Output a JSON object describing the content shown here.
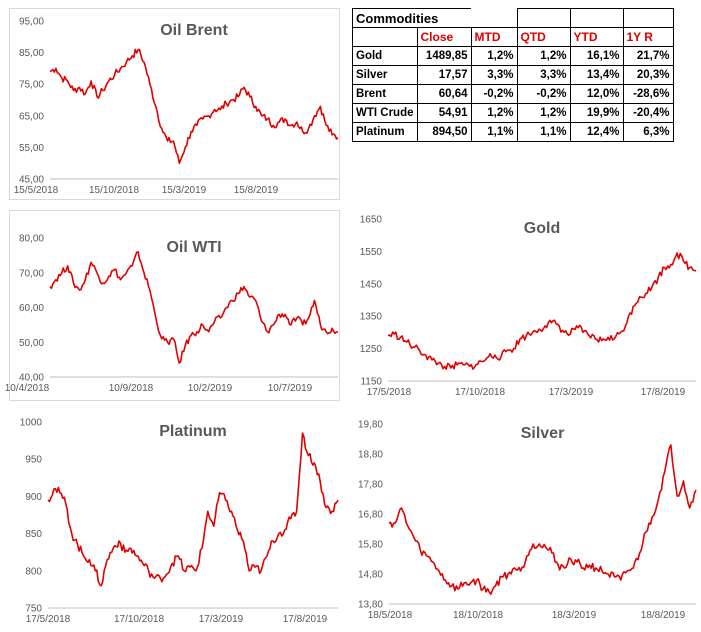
{
  "line_color": "#e00000",
  "table": {
    "title": "Commodities",
    "headers": [
      "Close",
      "MTD",
      "QTD",
      "YTD",
      "1Y R"
    ],
    "rows": [
      {
        "name": "Gold",
        "values": [
          "1489,85",
          "1,2%",
          "1,2%",
          "16,1%",
          "21,7%"
        ]
      },
      {
        "name": "Silver",
        "values": [
          "17,57",
          "3,3%",
          "3,3%",
          "13,4%",
          "20,3%"
        ]
      },
      {
        "name": "Brent",
        "values": [
          "60,64",
          "-0,2%",
          "-0,2%",
          "12,0%",
          "-28,6%"
        ]
      },
      {
        "name": "WTI Crude",
        "values": [
          "54,91",
          "1,2%",
          "1,2%",
          "19,9%",
          "-20,4%"
        ]
      },
      {
        "name": "Platinum",
        "values": [
          "894,50",
          "1,1%",
          "1,1%",
          "12,4%",
          "6,3%"
        ]
      }
    ]
  },
  "chart_data": [
    {
      "type": "line",
      "title": "Oil Brent",
      "ylim": [
        45,
        95
      ],
      "yticks": [
        "45,00",
        "55,00",
        "65,00",
        "75,00",
        "85,00",
        "95,00"
      ],
      "xticks": [
        "15/5/2018",
        "15/10/2018",
        "15/3/2019",
        "15/8/2019"
      ],
      "series": [
        {
          "values": [
            79,
            80,
            77,
            76,
            73,
            74,
            72,
            76,
            71,
            73,
            76,
            78,
            80,
            82,
            84,
            86,
            82,
            75,
            68,
            61,
            57,
            57,
            50,
            55,
            60,
            62,
            64,
            65,
            67,
            67,
            69,
            70,
            71,
            74,
            71,
            68,
            65,
            64,
            62,
            63,
            64,
            62,
            63,
            60,
            61,
            65,
            68,
            62,
            59,
            58
          ]
        }
      ]
    },
    {
      "type": "line",
      "title": "Oil WTI",
      "ylim": [
        40,
        80
      ],
      "yticks": [
        "40,00",
        "50,00",
        "60,00",
        "70,00",
        "80,00"
      ],
      "xticks": [
        "10/4/2018",
        "10/9/2018",
        "10/2/2019",
        "10/7/2019"
      ],
      "series": [
        {
          "values": [
            66,
            68,
            70,
            72,
            67,
            65,
            68,
            73,
            70,
            67,
            69,
            71,
            68,
            70,
            72,
            76,
            70,
            65,
            57,
            51,
            50,
            51,
            44,
            49,
            52,
            53,
            55,
            53,
            56,
            57,
            60,
            62,
            64,
            66,
            63,
            62,
            56,
            53,
            55,
            58,
            58,
            55,
            57,
            55,
            57,
            62,
            55,
            53,
            54,
            53
          ]
        }
      ]
    },
    {
      "type": "line",
      "title": "Gold",
      "ylim": [
        1150,
        1650
      ],
      "yticks": [
        "1150",
        "1250",
        "1350",
        "1450",
        "1550",
        "1650"
      ],
      "xticks": [
        "17/5/2018",
        "17/10/2018",
        "17/3/2019",
        "17/8/2019"
      ],
      "series": [
        {
          "values": [
            1290,
            1295,
            1285,
            1270,
            1255,
            1245,
            1230,
            1215,
            1205,
            1195,
            1190,
            1200,
            1200,
            1195,
            1200,
            1210,
            1225,
            1230,
            1225,
            1245,
            1250,
            1280,
            1290,
            1300,
            1310,
            1320,
            1330,
            1325,
            1300,
            1295,
            1320,
            1300,
            1290,
            1280,
            1275,
            1285,
            1280,
            1300,
            1330,
            1380,
            1410,
            1420,
            1440,
            1470,
            1500,
            1510,
            1545,
            1520,
            1500,
            1490
          ]
        }
      ]
    },
    {
      "type": "line",
      "title": "Platinum",
      "ylim": [
        750,
        1000
      ],
      "yticks": [
        "750",
        "800",
        "850",
        "900",
        "950",
        "1000"
      ],
      "xticks": [
        "17/5/2018",
        "17/10/2018",
        "17/3/2019",
        "17/8/2019"
      ],
      "series": [
        {
          "values": [
            895,
            910,
            905,
            890,
            850,
            835,
            820,
            815,
            800,
            780,
            815,
            830,
            840,
            825,
            830,
            820,
            810,
            800,
            790,
            790,
            795,
            810,
            820,
            800,
            805,
            800,
            830,
            880,
            860,
            905,
            895,
            880,
            855,
            840,
            800,
            805,
            800,
            820,
            840,
            850,
            855,
            870,
            880,
            985,
            955,
            945,
            920,
            885,
            880,
            895
          ]
        }
      ]
    },
    {
      "type": "line",
      "title": "Silver",
      "ylim": [
        13.8,
        19.8
      ],
      "yticks": [
        "13,80",
        "14,80",
        "15,80",
        "16,80",
        "17,80",
        "18,80",
        "19,80"
      ],
      "xticks": [
        "18/5/2018",
        "18/10/2018",
        "18/3/2019",
        "18/8/2019"
      ],
      "series": [
        {
          "values": [
            16.5,
            16.5,
            17.0,
            16.4,
            16.0,
            15.6,
            15.4,
            15.2,
            14.9,
            14.6,
            14.4,
            14.3,
            14.5,
            14.5,
            14.6,
            14.3,
            14.2,
            14.4,
            14.7,
            14.8,
            15.0,
            14.9,
            15.4,
            15.8,
            15.8,
            15.7,
            15.5,
            15.1,
            15.0,
            15.3,
            15.2,
            15.0,
            15.1,
            15.0,
            14.9,
            14.8,
            14.7,
            14.6,
            14.9,
            15.0,
            15.5,
            16.2,
            16.7,
            17.3,
            18.2,
            19.1,
            17.4,
            17.9,
            17.0,
            17.6
          ]
        }
      ]
    }
  ]
}
